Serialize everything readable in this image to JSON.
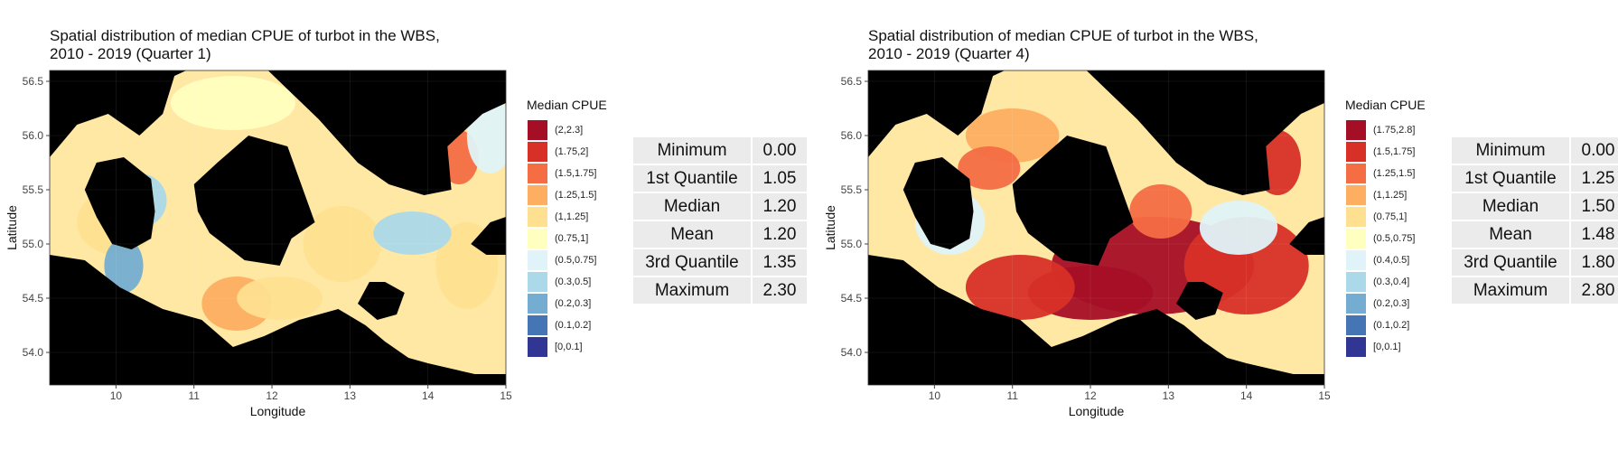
{
  "chart_data": [
    {
      "type": "heatmap",
      "title": "Spatial distribution of median CPUE of turbot in the WBS, 2010 - 2019 (Quarter 1)",
      "title_lines": [
        "Spatial distribution of median CPUE of turbot in the WBS,",
        "2010 - 2019 (Quarter 1)"
      ],
      "xlabel": "Longitude",
      "ylabel": "Latitude",
      "xlim": [
        9.15,
        15.0
      ],
      "ylim": [
        53.7,
        56.6
      ],
      "x_ticks": [
        "10",
        "11",
        "12",
        "13",
        "14",
        "15"
      ],
      "y_ticks": [
        "54.0",
        "54.5",
        "55.0",
        "55.5",
        "56.0",
        "56.5"
      ],
      "grid": true,
      "legend": {
        "title": "Median CPUE",
        "placement": "right",
        "entries": [
          {
            "label": "(2,2.3]",
            "color": "#a50f26"
          },
          {
            "label": "(1.75,2]",
            "color": "#d73027"
          },
          {
            "label": "(1.5,1.75]",
            "color": "#f46d43"
          },
          {
            "label": "(1.25,1.5]",
            "color": "#fdae61"
          },
          {
            "label": "(1,1.25]",
            "color": "#fee090"
          },
          {
            "label": "(0.75,1]",
            "color": "#ffffbf"
          },
          {
            "label": "(0.5,0.75]",
            "color": "#e0f3f8"
          },
          {
            "label": "(0.3,0.5]",
            "color": "#abd9e9"
          },
          {
            "label": "(0.2,0.3]",
            "color": "#74add1"
          },
          {
            "label": "(0.1,0.2]",
            "color": "#4575b4"
          },
          {
            "label": "[0,0.1]",
            "color": "#313695"
          }
        ]
      },
      "summary": [
        {
          "label": "Minimum",
          "value": "0.00"
        },
        {
          "label": "1st Quantile",
          "value": "1.05"
        },
        {
          "label": "Median",
          "value": "1.20"
        },
        {
          "label": "Mean",
          "value": "1.20"
        },
        {
          "label": "3rd Quantile",
          "value": "1.35"
        },
        {
          "label": "Maximum",
          "value": "2.30"
        }
      ]
    },
    {
      "type": "heatmap",
      "title": "Spatial distribution of median CPUE of turbot in the WBS, 2010 - 2019 (Quarter 4)",
      "title_lines": [
        "Spatial distribution of median CPUE of turbot in the WBS,",
        "2010 - 2019 (Quarter 4)"
      ],
      "xlabel": "Longitude",
      "ylabel": "Latitude",
      "xlim": [
        9.15,
        15.0
      ],
      "ylim": [
        53.7,
        56.6
      ],
      "x_ticks": [
        "10",
        "11",
        "12",
        "13",
        "14",
        "15"
      ],
      "y_ticks": [
        "54.0",
        "54.5",
        "55.0",
        "55.5",
        "56.0",
        "56.5"
      ],
      "grid": true,
      "legend": {
        "title": "Median CPUE",
        "placement": "right",
        "entries": [
          {
            "label": "(1.75,2.8]",
            "color": "#a50f26"
          },
          {
            "label": "(1.5,1.75]",
            "color": "#d73027"
          },
          {
            "label": "(1.25,1.5]",
            "color": "#f46d43"
          },
          {
            "label": "(1,1.25]",
            "color": "#fdae61"
          },
          {
            "label": "(0.75,1]",
            "color": "#fee090"
          },
          {
            "label": "(0.5,0.75]",
            "color": "#ffffbf"
          },
          {
            "label": "(0.4,0.5]",
            "color": "#e0f3f8"
          },
          {
            "label": "(0.3,0.4]",
            "color": "#abd9e9"
          },
          {
            "label": "(0.2,0.3]",
            "color": "#74add1"
          },
          {
            "label": "(0.1,0.2]",
            "color": "#4575b4"
          },
          {
            "label": "[0,0.1]",
            "color": "#313695"
          }
        ]
      },
      "summary": [
        {
          "label": "Minimum",
          "value": "0.00"
        },
        {
          "label": "1st Quantile",
          "value": "1.25"
        },
        {
          "label": "Median",
          "value": "1.50"
        },
        {
          "label": "Mean",
          "value": "1.48"
        },
        {
          "label": "3rd Quantile",
          "value": "1.80"
        },
        {
          "label": "Maximum",
          "value": "2.80"
        }
      ]
    }
  ]
}
